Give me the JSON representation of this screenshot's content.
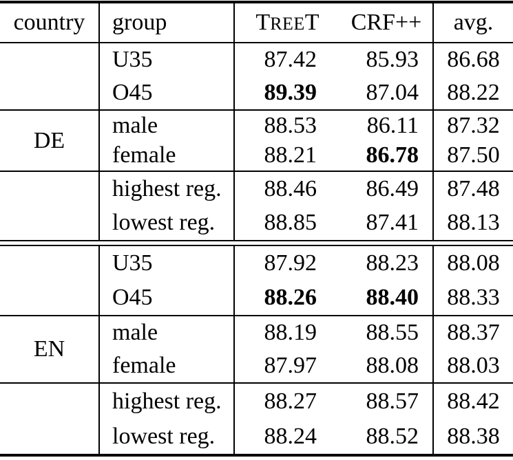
{
  "colors": {
    "background": "#ffffff",
    "text": "#000000",
    "rule": "#000000"
  },
  "table": {
    "header": {
      "country": "country",
      "group": "group",
      "treet_cap1": "T",
      "treet_small": "REE",
      "treet_cap2": "T",
      "crf": "CRF++",
      "avg": "avg."
    },
    "sections": [
      {
        "country": "DE",
        "blocks": [
          {
            "rows": [
              {
                "group": "U35",
                "treet": {
                  "v": "87.42",
                  "bold": false
                },
                "crf": {
                  "v": "85.93",
                  "bold": false
                },
                "avg": {
                  "v": "86.68",
                  "bold": false
                }
              },
              {
                "group": "O45",
                "treet": {
                  "v": "89.39",
                  "bold": true
                },
                "crf": {
                  "v": "87.04",
                  "bold": false
                },
                "avg": {
                  "v": "88.22",
                  "bold": false
                }
              }
            ]
          },
          {
            "rows": [
              {
                "group": "male",
                "treet": {
                  "v": "88.53",
                  "bold": false
                },
                "crf": {
                  "v": "86.11",
                  "bold": false
                },
                "avg": {
                  "v": "87.32",
                  "bold": false
                }
              },
              {
                "group": "female",
                "treet": {
                  "v": "88.21",
                  "bold": false
                },
                "crf": {
                  "v": "86.78",
                  "bold": true
                },
                "avg": {
                  "v": "87.50",
                  "bold": false
                }
              }
            ]
          },
          {
            "rows": [
              {
                "group": "highest reg.",
                "treet": {
                  "v": "88.46",
                  "bold": false
                },
                "crf": {
                  "v": "86.49",
                  "bold": false
                },
                "avg": {
                  "v": "87.48",
                  "bold": false
                }
              },
              {
                "group": "lowest reg.",
                "treet": {
                  "v": "88.85",
                  "bold": false
                },
                "crf": {
                  "v": "87.41",
                  "bold": false
                },
                "avg": {
                  "v": "88.13",
                  "bold": false
                }
              }
            ]
          }
        ]
      },
      {
        "country": "EN",
        "blocks": [
          {
            "rows": [
              {
                "group": "U35",
                "treet": {
                  "v": "87.92",
                  "bold": false
                },
                "crf": {
                  "v": "88.23",
                  "bold": false
                },
                "avg": {
                  "v": "88.08",
                  "bold": false
                }
              },
              {
                "group": "O45",
                "treet": {
                  "v": "88.26",
                  "bold": true
                },
                "crf": {
                  "v": "88.40",
                  "bold": true
                },
                "avg": {
                  "v": "88.33",
                  "bold": false
                }
              }
            ]
          },
          {
            "rows": [
              {
                "group": "male",
                "treet": {
                  "v": "88.19",
                  "bold": false
                },
                "crf": {
                  "v": "88.55",
                  "bold": false
                },
                "avg": {
                  "v": "88.37",
                  "bold": false
                }
              },
              {
                "group": "female",
                "treet": {
                  "v": "87.97",
                  "bold": false
                },
                "crf": {
                  "v": "88.08",
                  "bold": false
                },
                "avg": {
                  "v": "88.03",
                  "bold": false
                }
              }
            ]
          },
          {
            "rows": [
              {
                "group": "highest reg.",
                "treet": {
                  "v": "88.27",
                  "bold": false
                },
                "crf": {
                  "v": "88.57",
                  "bold": false
                },
                "avg": {
                  "v": "88.42",
                  "bold": false
                }
              },
              {
                "group": "lowest reg.",
                "treet": {
                  "v": "88.24",
                  "bold": false
                },
                "crf": {
                  "v": "88.52",
                  "bold": false
                },
                "avg": {
                  "v": "88.38",
                  "bold": false
                }
              }
            ]
          }
        ]
      }
    ]
  }
}
